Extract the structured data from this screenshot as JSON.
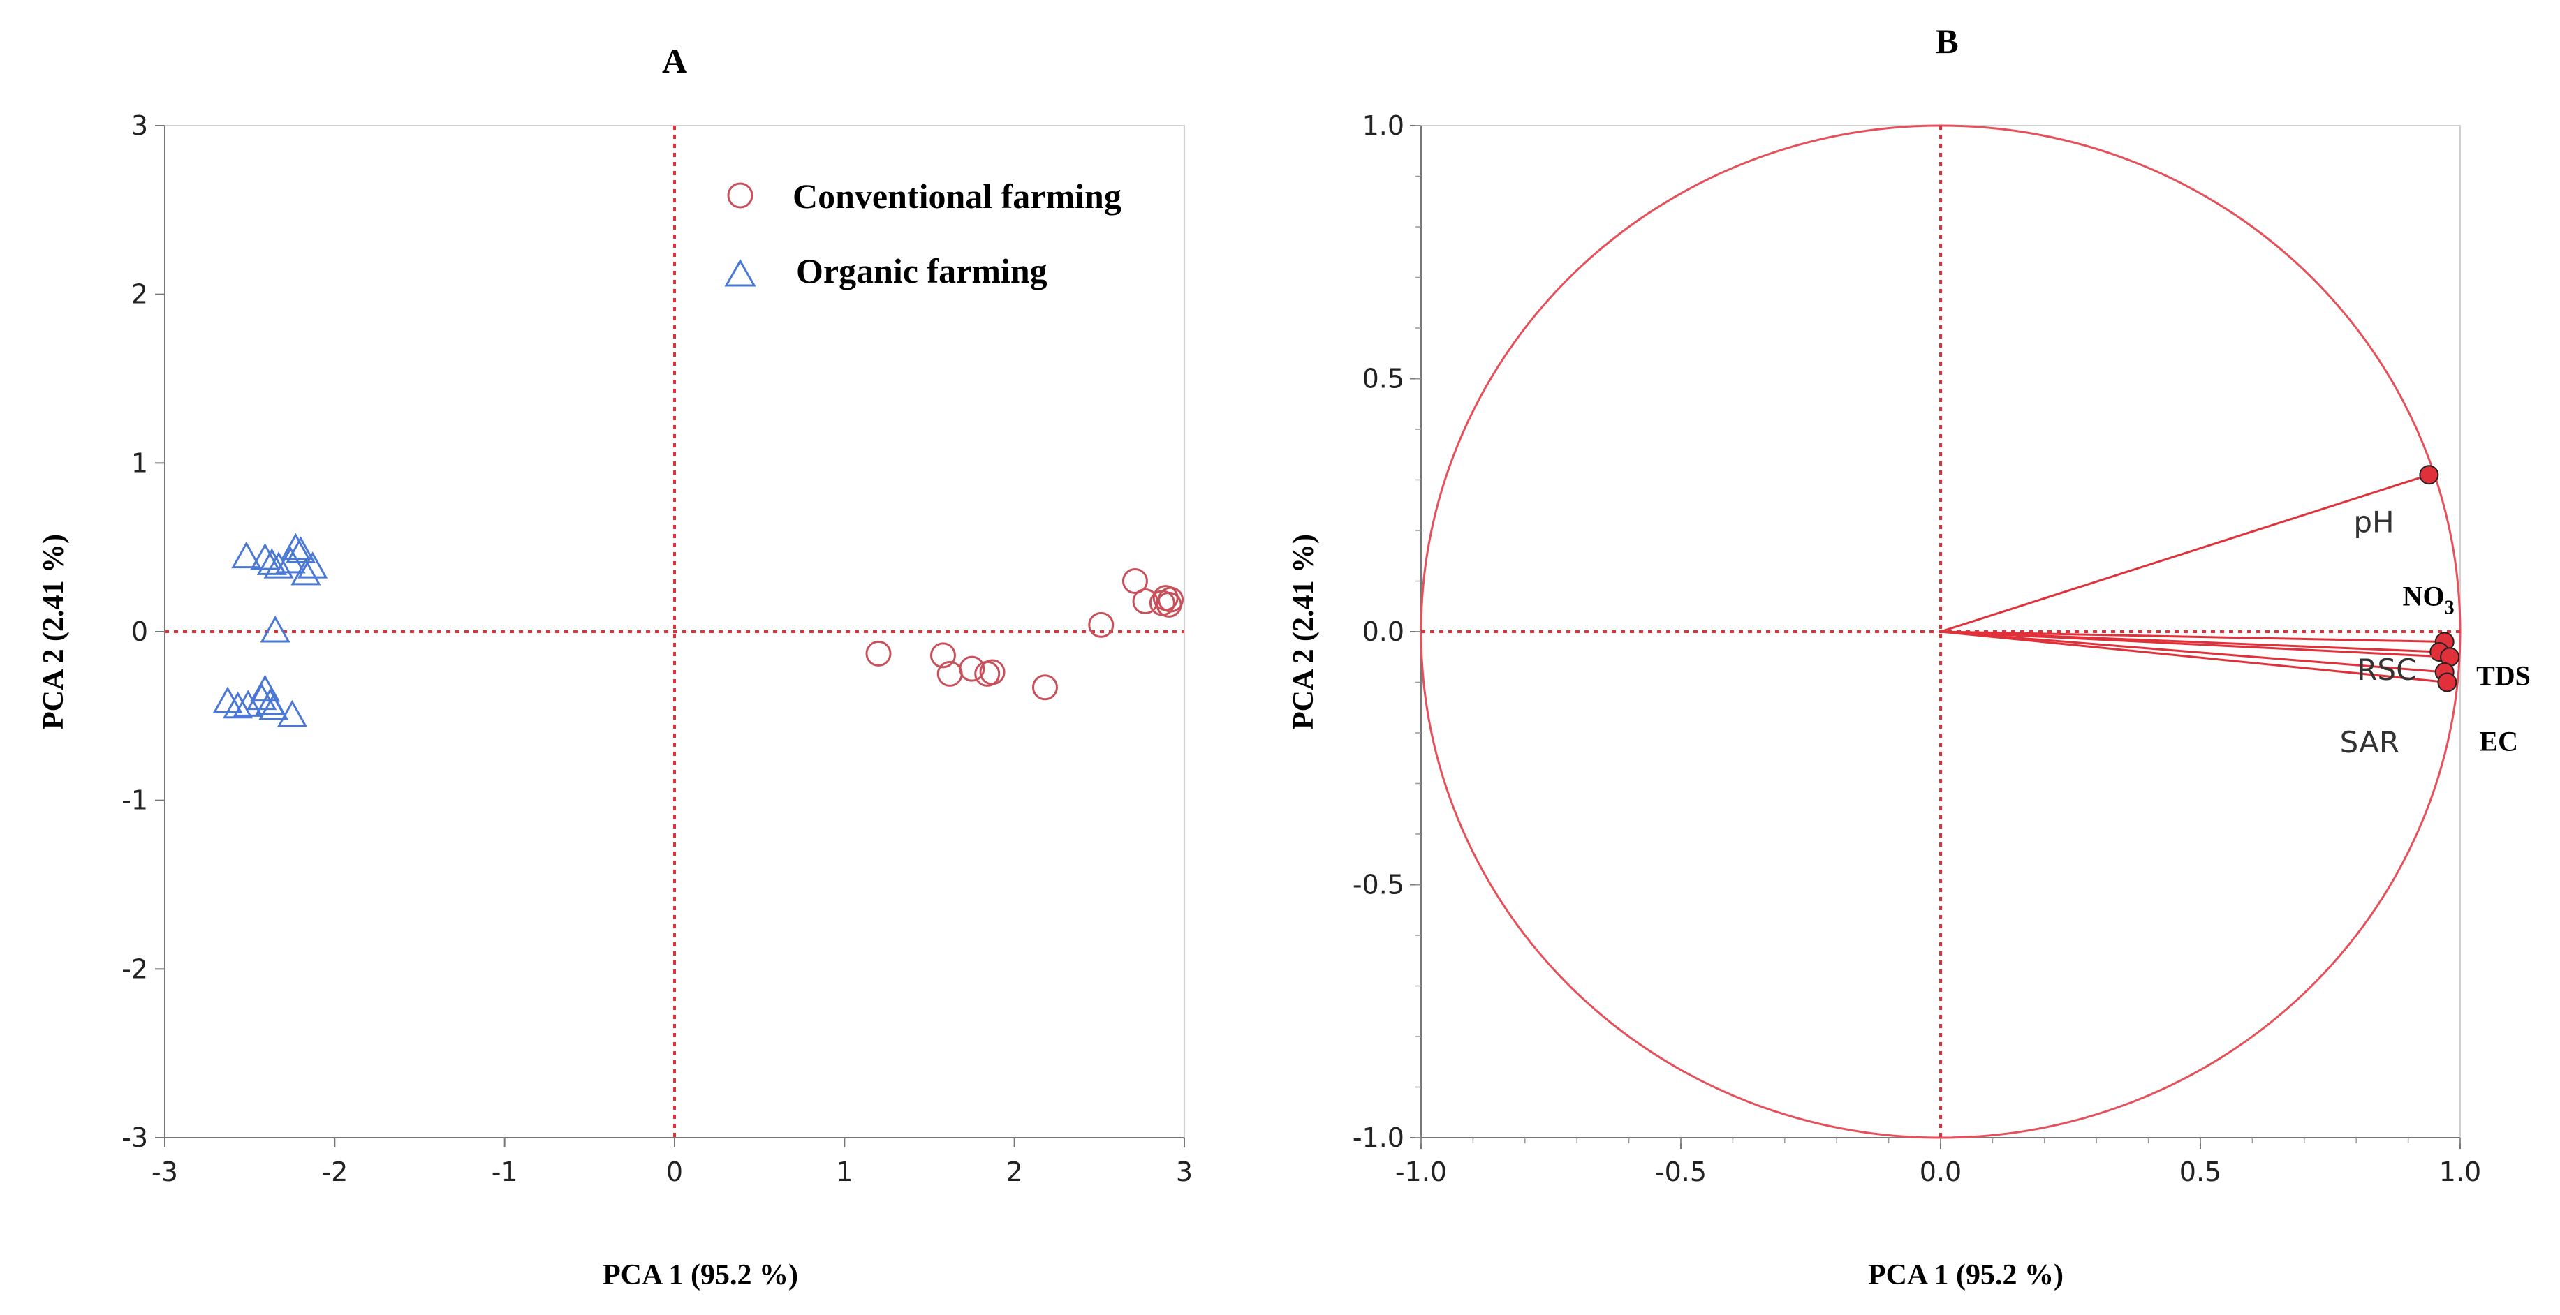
{
  "chart_data": [
    {
      "panel": "A",
      "type": "scatter",
      "xlabel": "PCA 1 (95.2 %)",
      "ylabel": "PCA 2 (2.41 %)",
      "xlim": [
        -3,
        3
      ],
      "ylim": [
        -3,
        3
      ],
      "xticks": [
        "-3",
        "-2",
        "-1",
        "0",
        "1",
        "2",
        "3"
      ],
      "yticks": [
        "3",
        "2",
        "1",
        "0",
        "-1",
        "-2",
        "-3"
      ],
      "reference_lines": {
        "x": 0,
        "y": 0,
        "color": "#e0303a",
        "style": "dotted"
      },
      "legend_position": "top-right",
      "series": [
        {
          "name": "Conventional farming",
          "marker": "circle",
          "color": "#c8505a",
          "points": [
            [
              1.2,
              -0.13
            ],
            [
              1.58,
              -0.14
            ],
            [
              1.62,
              -0.25
            ],
            [
              1.75,
              -0.22
            ],
            [
              1.84,
              -0.25
            ],
            [
              1.87,
              -0.24
            ],
            [
              2.18,
              -0.33
            ],
            [
              2.51,
              0.04
            ],
            [
              2.71,
              0.3
            ],
            [
              2.77,
              0.18
            ],
            [
              2.87,
              0.17
            ],
            [
              2.89,
              0.2
            ],
            [
              2.91,
              0.16
            ],
            [
              2.92,
              0.19
            ]
          ]
        },
        {
          "name": "Organic farming",
          "marker": "triangle",
          "color": "#4a78d4",
          "points": [
            [
              -2.52,
              0.44
            ],
            [
              -2.41,
              0.43
            ],
            [
              -2.37,
              0.4
            ],
            [
              -2.33,
              0.38
            ],
            [
              -2.26,
              0.41
            ],
            [
              -2.23,
              0.49
            ],
            [
              -2.2,
              0.47
            ],
            [
              -2.17,
              0.34
            ],
            [
              -2.13,
              0.38
            ],
            [
              -2.35,
              0.0
            ],
            [
              -2.63,
              -0.42
            ],
            [
              -2.57,
              -0.45
            ],
            [
              -2.51,
              -0.44
            ],
            [
              -2.43,
              -0.4
            ],
            [
              -2.41,
              -0.35
            ],
            [
              -2.38,
              -0.43
            ],
            [
              -2.36,
              -0.46
            ],
            [
              -2.25,
              -0.5
            ]
          ]
        }
      ]
    },
    {
      "panel": "B",
      "type": "scatter",
      "subtype": "loading-plot",
      "xlabel": "PCA 1 (95.2 %)",
      "ylabel": "PCA 2 (2.41 %)",
      "xlim": [
        -1.0,
        1.0
      ],
      "ylim": [
        -1.0,
        1.0
      ],
      "xticks": [
        "-1.0",
        "-0.5",
        "0.0",
        "0.5",
        "1.0"
      ],
      "yticks": [
        "1.0",
        "0.5",
        "0.0",
        "-0.5",
        "-1.0"
      ],
      "unit_circle": true,
      "reference_lines": {
        "x": 0,
        "y": 0,
        "color": "#e0303a",
        "style": "dotted"
      },
      "color": "#e0303a",
      "loadings": [
        {
          "label": "pH",
          "x": 0.94,
          "y": 0.31,
          "label_style": "sans"
        },
        {
          "label": "NO",
          "subscript": "3",
          "x": 0.97,
          "y": -0.02,
          "label_style": "serif"
        },
        {
          "label": "RSC",
          "x": 0.96,
          "y": -0.04,
          "label_style": "sans"
        },
        {
          "label": "TDS",
          "x": 0.98,
          "y": -0.05,
          "label_style": "serif"
        },
        {
          "label": "SAR",
          "x": 0.97,
          "y": -0.08,
          "label_style": "sans"
        },
        {
          "label": "EC",
          "x": 0.975,
          "y": -0.1,
          "label_style": "serif"
        }
      ]
    }
  ]
}
